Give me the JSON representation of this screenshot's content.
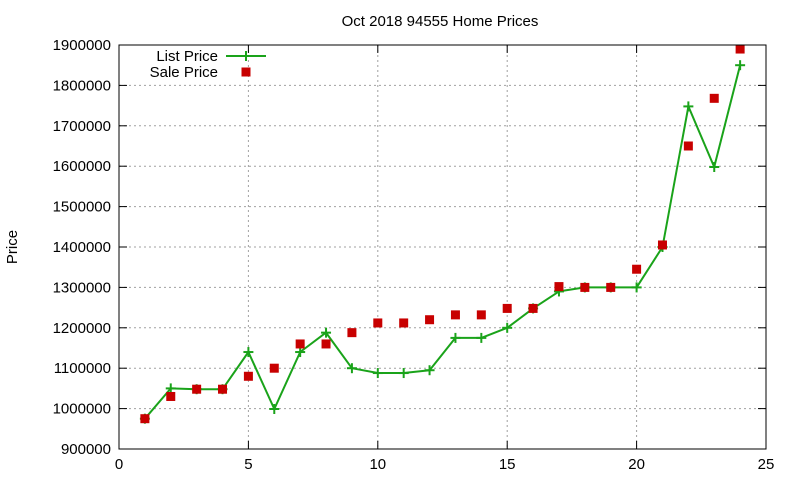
{
  "chart_data": {
    "type": "line",
    "title": "Oct 2018 94555 Home Prices",
    "xlabel": "",
    "ylabel": "Price",
    "xlim": [
      0,
      25
    ],
    "ylim": [
      900000,
      1900000
    ],
    "x_ticks": [
      0,
      5,
      10,
      15,
      20,
      25
    ],
    "y_ticks": [
      900000,
      1000000,
      1100000,
      1200000,
      1300000,
      1400000,
      1500000,
      1600000,
      1700000,
      1800000,
      1900000
    ],
    "grid": true,
    "legend_position": "top-left",
    "series": [
      {
        "name": "List Price",
        "style": "line-points",
        "marker": "plus",
        "color": "#1aa31a",
        "x": [
          1,
          2,
          3,
          4,
          5,
          6,
          7,
          8,
          9,
          10,
          11,
          12,
          13,
          14,
          15,
          16,
          17,
          18,
          19,
          20,
          21,
          22,
          23,
          24
        ],
        "y": [
          975000,
          1050000,
          1048000,
          1048000,
          1140000,
          999000,
          1140000,
          1188000,
          1100000,
          1088000,
          1088000,
          1095000,
          1175000,
          1175000,
          1200000,
          1248000,
          1290000,
          1300000,
          1300000,
          1300000,
          1400000,
          1748000,
          1598000,
          1850000
        ]
      },
      {
        "name": "Sale Price",
        "style": "points",
        "marker": "square",
        "color": "#c80000",
        "x": [
          1,
          2,
          3,
          4,
          5,
          6,
          7,
          8,
          9,
          10,
          11,
          12,
          13,
          14,
          15,
          16,
          17,
          18,
          19,
          20,
          21,
          22,
          23,
          24
        ],
        "y": [
          975000,
          1030000,
          1048000,
          1048000,
          1080000,
          1100000,
          1160000,
          1160000,
          1188000,
          1212000,
          1212000,
          1220000,
          1232000,
          1232000,
          1248000,
          1248000,
          1302000,
          1300000,
          1300000,
          1345000,
          1405000,
          1650000,
          1768000,
          1890000
        ]
      }
    ]
  }
}
